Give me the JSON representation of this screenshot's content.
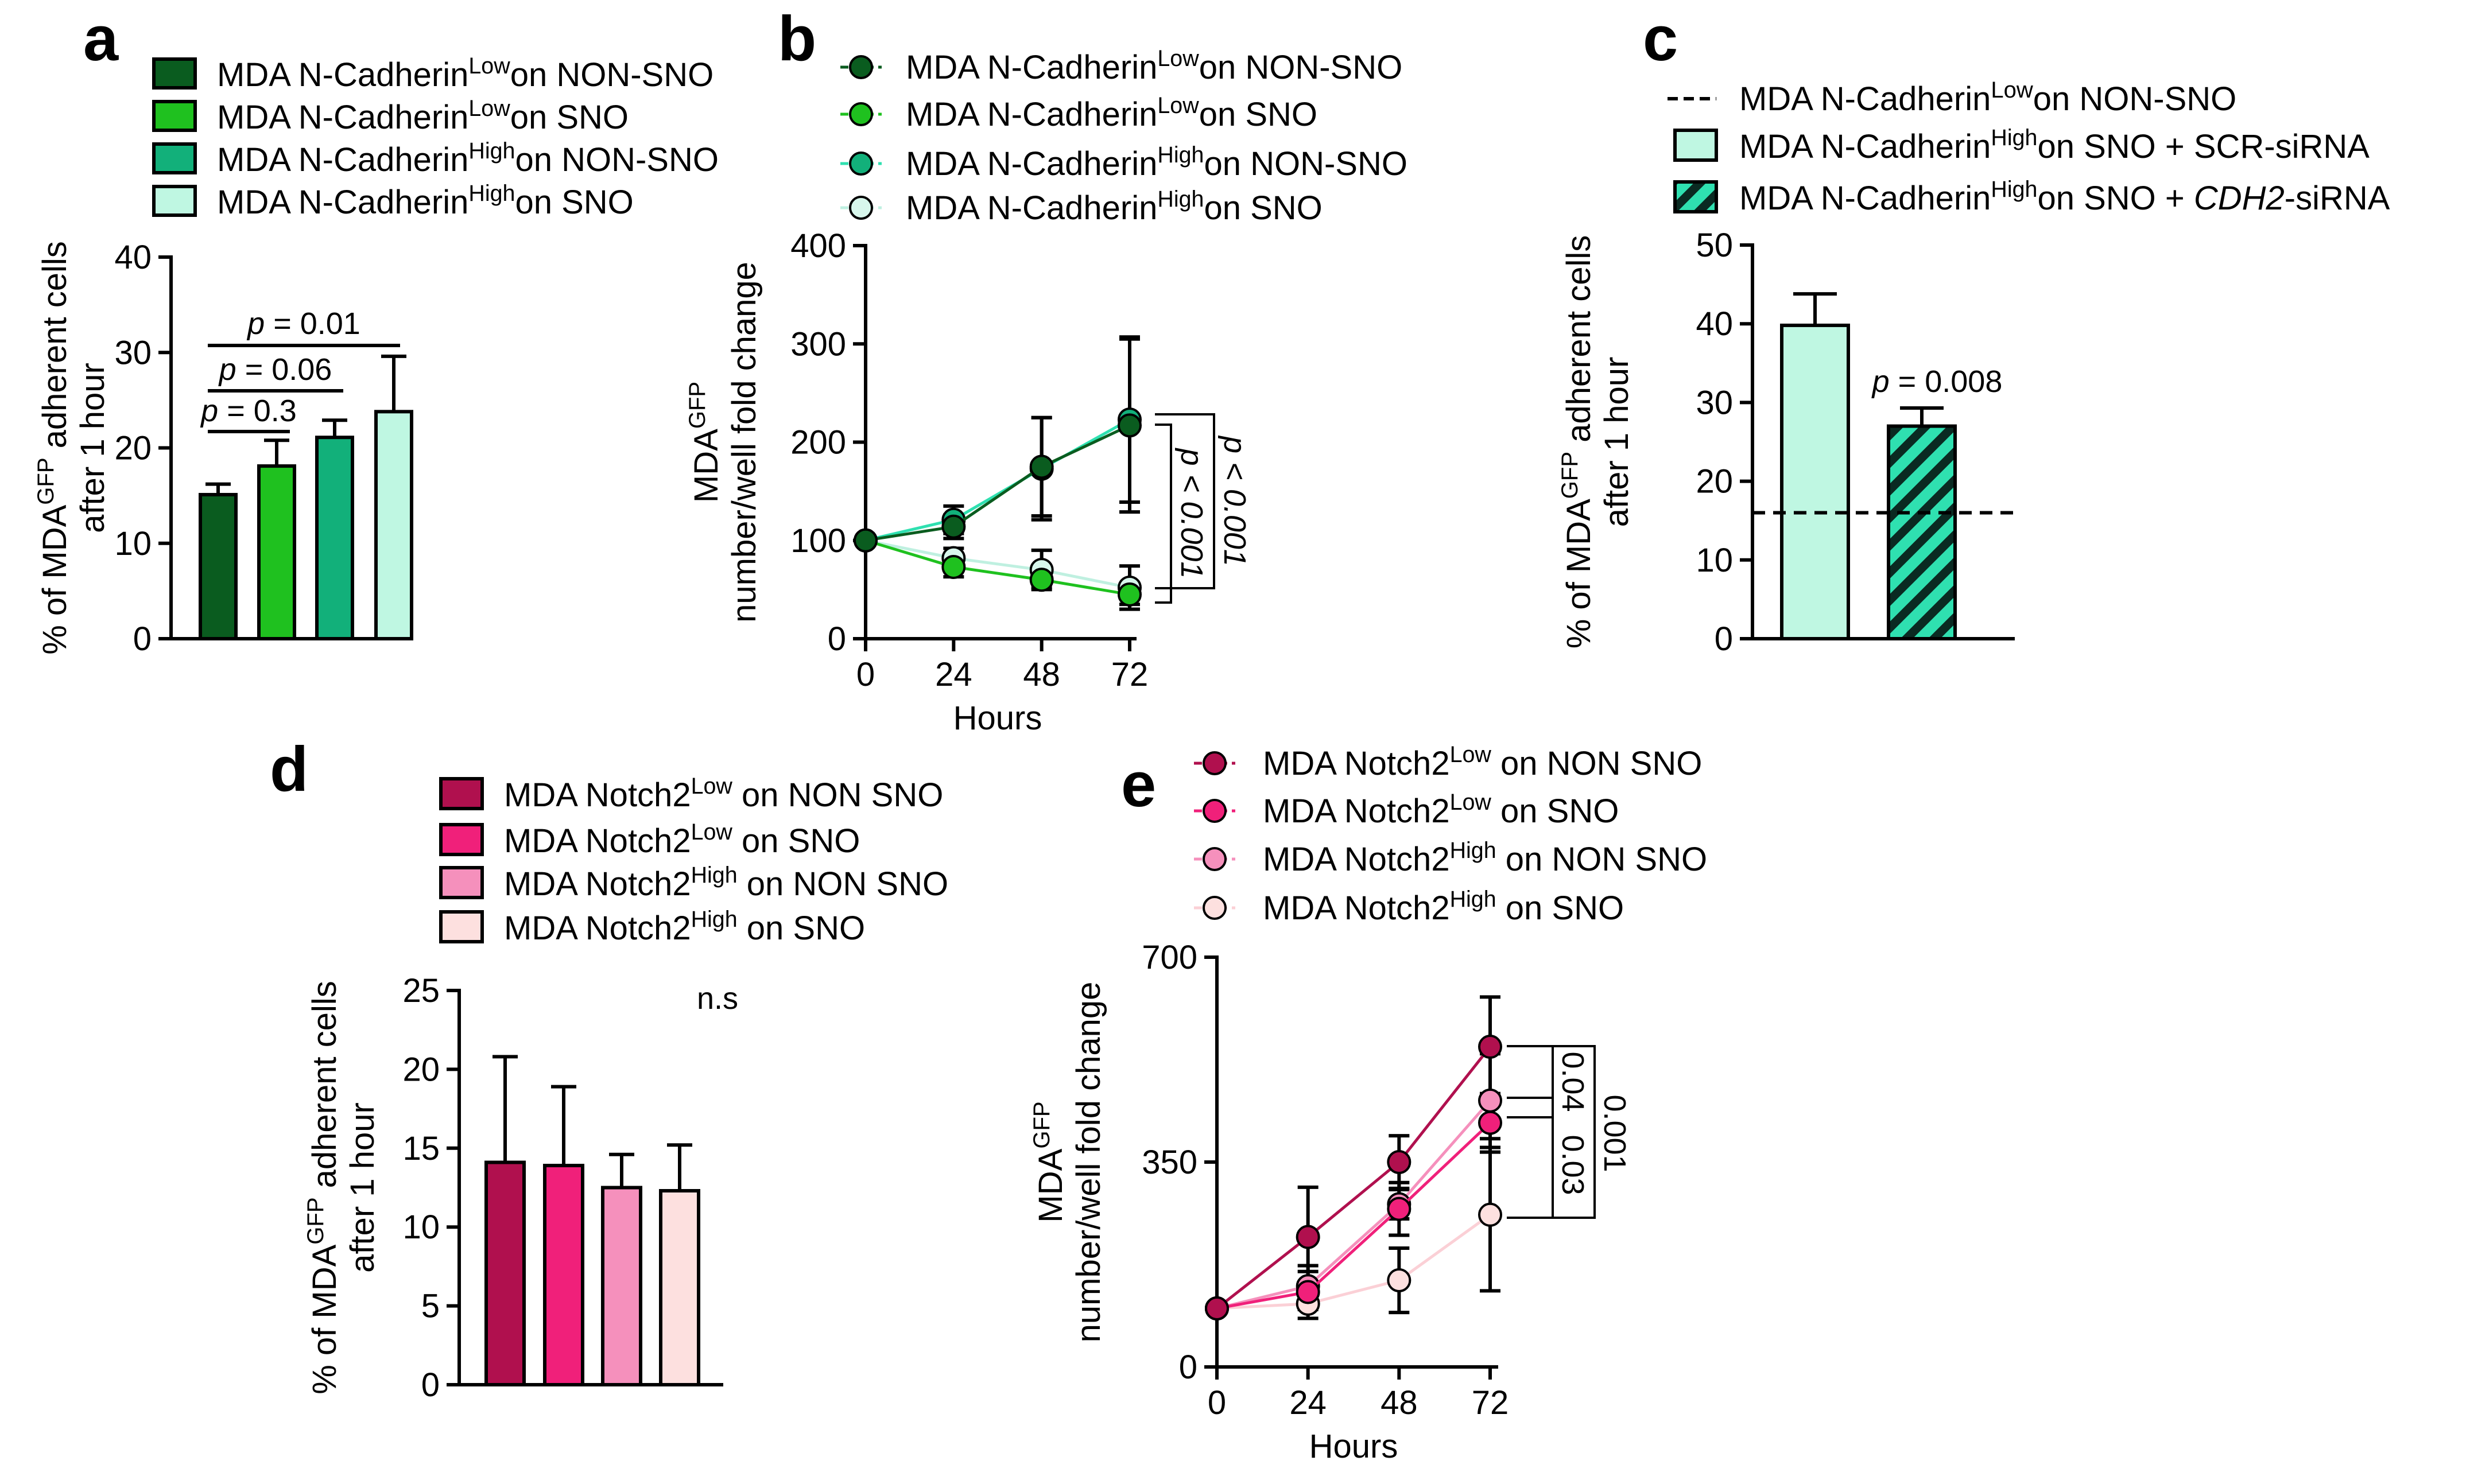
{
  "colors": {
    "dark_green": "#0a5c1f",
    "green": "#1fc11f",
    "teal": "#12b07a",
    "mint": "#bff7e2",
    "mint_line": "#2fe0b0",
    "light_mint": "#d8f7ec",
    "crimson": "#b0104e",
    "pink": "#f0207a",
    "light_pink": "#f590bc",
    "blush": "#fde0df"
  },
  "chart_data": [
    {
      "panel": "a",
      "type": "bar",
      "ylabel_line1": "% of MDA",
      "ylabel_sup": "GFP",
      "ylabel_line1_end": " adherent cells",
      "ylabel_line2": "after 1 hour",
      "ylim": [
        0,
        40
      ],
      "yticks": [
        "0",
        "10",
        "20",
        "30",
        "40"
      ],
      "series": [
        {
          "name": "MDA N-Cadherin Low on NON-SNO",
          "legend_pre": "MDA N-Cadherin",
          "legend_sup": "Low",
          "legend_post": "on NON-SNO",
          "value": 15.1,
          "error": 1.1,
          "color": "#0a5c1f"
        },
        {
          "name": "MDA N-Cadherin Low on SNO",
          "legend_pre": "MDA N-Cadherin",
          "legend_sup": "Low",
          "legend_post": "on SNO",
          "value": 18.1,
          "error": 2.7,
          "color": "#1fc11f"
        },
        {
          "name": "MDA N-Cadherin High on NON-SNO",
          "legend_pre": "MDA N-Cadherin",
          "legend_sup": "High",
          "legend_post": "on NON-SNO",
          "value": 21.1,
          "error": 1.8,
          "color": "#12b07a"
        },
        {
          "name": "MDA N-Cadherin High on SNO",
          "legend_pre": "MDA N-Cadherin",
          "legend_sup": "High",
          "legend_post": "on SNO",
          "value": 23.8,
          "error": 5.8,
          "color": "#bff7e2"
        }
      ],
      "comparisons": [
        {
          "from": 0,
          "to": 1,
          "p_label": "p",
          "p_value": " = 0.3"
        },
        {
          "from": 0,
          "to": 2,
          "p_label": "p",
          "p_value": " = 0.06"
        },
        {
          "from": 0,
          "to": 3,
          "p_label": "p",
          "p_value": " = 0.01"
        }
      ]
    },
    {
      "panel": "b",
      "type": "line",
      "xlabel": "Hours",
      "ylabel_line1": "MDA",
      "ylabel_sup": "GFP",
      "ylabel_line2": "number/well fold change",
      "x": [
        0,
        24,
        48,
        72
      ],
      "xticks": [
        "0",
        "24",
        "48",
        "72"
      ],
      "ylim": [
        0,
        400
      ],
      "yticks": [
        "0",
        "100",
        "200",
        "300",
        "400"
      ],
      "series": [
        {
          "name": "MDA N-Cadherin Low on NON-SNO",
          "legend_pre": "MDA N-Cadherin",
          "legend_sup": "Low",
          "legend_post": "on NON-SNO",
          "values": [
            100,
            114,
            175,
            217
          ],
          "errors": [
            0,
            12,
            50,
            88
          ],
          "color": "#0a5c1f",
          "line": "#0a5c1f"
        },
        {
          "name": "MDA N-Cadherin Low on SNO",
          "legend_pre": "MDA N-Cadherin",
          "legend_sup": "Low",
          "legend_post": "on SNO",
          "values": [
            100,
            73,
            60,
            45
          ],
          "errors": [
            0,
            10,
            8,
            10
          ],
          "color": "#1fc11f",
          "line": "#1fc11f"
        },
        {
          "name": "MDA N-Cadherin High on NON-SNO",
          "legend_pre": "MDA N-Cadherin",
          "legend_sup": "High",
          "legend_post": "on NON-SNO",
          "values": [
            100,
            121,
            173,
            223
          ],
          "errors": [
            0,
            14,
            52,
            84
          ],
          "color": "#12b07a",
          "line": "#2fe0b0"
        },
        {
          "name": "MDA N-Cadherin High on SNO",
          "legend_pre": "MDA N-Cadherin",
          "legend_sup": "High",
          "legend_post": "on SNO",
          "values": [
            100,
            82,
            70,
            52
          ],
          "errors": [
            0,
            10,
            20,
            22
          ],
          "color": "#d8f7ec",
          "line": "#bff0e0"
        }
      ],
      "brackets": [
        {
          "label": "p < 0.001",
          "a": 0,
          "b": 1
        },
        {
          "label": "p < 0.001",
          "a": 2,
          "b": 3
        }
      ]
    },
    {
      "panel": "c",
      "type": "bar",
      "ylabel_line1": "% of MDA",
      "ylabel_sup": "GFP",
      "ylabel_line1_end": " adherent cells",
      "ylabel_line2": "after 1 hour",
      "ylim": [
        0,
        50
      ],
      "yticks": [
        "0",
        "10",
        "20",
        "30",
        "40",
        "50"
      ],
      "reference_line": {
        "value": 16,
        "legend_pre": "MDA N-Cadherin",
        "legend_sup": "Low",
        "legend_post": "on NON-SNO"
      },
      "series": [
        {
          "name": "MDA N-Cadherin High on SNO + SCR-siRNA",
          "legend_pre": "MDA N-Cadherin",
          "legend_sup": "High",
          "legend_post": "on SNO + SCR-siRNA",
          "value": 39.8,
          "error": 4.0,
          "color": "#bff7e2",
          "hatched": false
        },
        {
          "name": "MDA N-Cadherin High on SNO + CDH2-siRNA",
          "legend_pre": "MDA N-Cadherin",
          "legend_sup": "High",
          "legend_post": "on SNO + ",
          "legend_italic": "CDH2",
          "legend_tail": "-siRNA",
          "value": 27.0,
          "error": 2.3,
          "color": "#2fe0b0",
          "hatched": true
        }
      ],
      "annotation": {
        "p_label": "p",
        "p_value": " = 0.008"
      }
    },
    {
      "panel": "d",
      "type": "bar",
      "ylabel_line1": "% of MDA",
      "ylabel_sup": "GFP",
      "ylabel_line1_end": " adherent cells",
      "ylabel_line2": "after 1 hour",
      "ylim": [
        0,
        25
      ],
      "yticks": [
        "0",
        "5",
        "10",
        "15",
        "20",
        "25"
      ],
      "annotation": "n.s",
      "series": [
        {
          "name": "MDA Notch2 Low on NON SNO",
          "legend_pre": "MDA Notch2",
          "legend_sup": "Low",
          "legend_post": " on NON SNO",
          "value": 14.1,
          "error": 6.7,
          "color": "#b0104e"
        },
        {
          "name": "MDA Notch2 Low on SNO",
          "legend_pre": "MDA Notch2",
          "legend_sup": "Low",
          "legend_post": " on SNO",
          "value": 13.9,
          "error": 5.0,
          "color": "#f0207a"
        },
        {
          "name": "MDA Notch2 High on NON SNO",
          "legend_pre": "MDA Notch2",
          "legend_sup": "High",
          "legend_post": " on NON SNO",
          "value": 12.5,
          "error": 2.1,
          "color": "#f590bc"
        },
        {
          "name": "MDA Notch2 High on SNO",
          "legend_pre": "MDA Notch2",
          "legend_sup": "High",
          "legend_post": " on SNO",
          "value": 12.3,
          "error": 2.9,
          "color": "#fde0df"
        }
      ]
    },
    {
      "panel": "e",
      "type": "line",
      "xlabel": "Hours",
      "ylabel_line1": "MDA",
      "ylabel_sup": "GFP",
      "ylabel_line2": "number/well fold change",
      "x": [
        0,
        24,
        48,
        72
      ],
      "xticks": [
        "0",
        "24",
        "48",
        "72"
      ],
      "ylim": [
        0,
        700
      ],
      "yticks": [
        "0",
        "350",
        "700"
      ],
      "series": [
        {
          "name": "MDA Notch2 Low on NON SNO",
          "legend_pre": "MDA Notch2",
          "legend_sup": "Low",
          "legend_post": " on NON SNO",
          "values": [
            100,
            222,
            350,
            547
          ],
          "errors": [
            0,
            85,
            45,
            85
          ],
          "color": "#b0104e",
          "line": "#b0104e"
        },
        {
          "name": "MDA Notch2 Low on SNO",
          "legend_pre": "MDA Notch2",
          "legend_sup": "Low",
          "legend_post": " on SNO",
          "values": [
            100,
            128,
            270,
            417
          ],
          "errors": [
            0,
            45,
            45,
            50
          ],
          "color": "#f0207a",
          "line": "#f0207a"
        },
        {
          "name": "MDA Notch2 High on NON SNO",
          "legend_pre": "MDA Notch2",
          "legend_sup": "High",
          "legend_post": " on NON SNO",
          "values": [
            100,
            138,
            278,
            455
          ],
          "errors": [
            0,
            25,
            25,
            80
          ],
          "color": "#f590bc",
          "line": "#f590bc"
        },
        {
          "name": "MDA Notch2 High on SNO",
          "legend_pre": "MDA Notch2",
          "legend_sup": "High",
          "legend_post": " on SNO",
          "values": [
            100,
            108,
            148,
            260
          ],
          "errors": [
            0,
            10,
            55,
            130
          ],
          "color": "#fde0df",
          "line": "#fbd0d6"
        }
      ],
      "brackets": [
        {
          "label": "0.001",
          "a": 0,
          "b": 3,
          "level": 2
        },
        {
          "label": "0.04",
          "a": 0,
          "b": 1,
          "level": 1
        },
        {
          "label": "0.03",
          "a": 2,
          "b": 3,
          "level": 1
        }
      ]
    }
  ]
}
